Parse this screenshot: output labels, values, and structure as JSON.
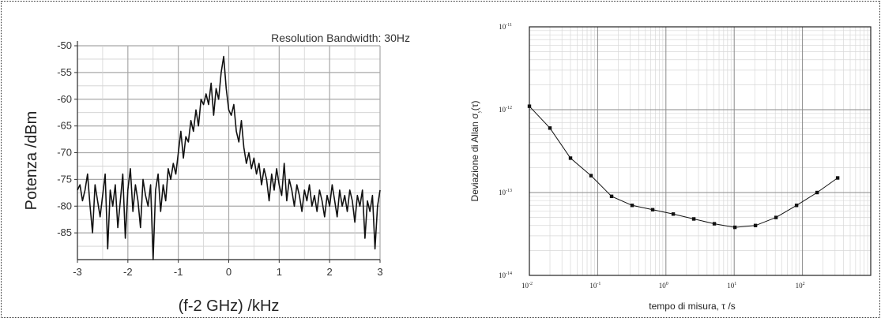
{
  "chart_data": [
    {
      "type": "line",
      "title": "",
      "annotation": "Resolution Bandwidth: 30Hz",
      "xlabel": "(f-2 GHz) /kHz",
      "ylabel": "Potenza /dBm",
      "xlim": [
        -3,
        3
      ],
      "ylim": [
        -90,
        -50
      ],
      "x_ticks": [
        -3,
        -2,
        -1,
        0,
        1,
        2,
        3
      ],
      "x_tick_labels": [
        "-3",
        "-2",
        "-1",
        "0",
        "1",
        "2",
        "3"
      ],
      "y_ticks": [
        -50,
        -55,
        -60,
        -65,
        -70,
        -75,
        -80,
        -85
      ],
      "y_tick_labels": [
        "-50",
        "-55",
        "-60",
        "-65",
        "-70",
        "-75",
        "-80",
        "-85"
      ],
      "grid": true,
      "line_color": "#111111",
      "series": [
        {
          "x": [
            -3.0,
            -2.95,
            -2.9,
            -2.85,
            -2.8,
            -2.75,
            -2.7,
            -2.65,
            -2.6,
            -2.55,
            -2.5,
            -2.45,
            -2.4,
            -2.35,
            -2.3,
            -2.25,
            -2.2,
            -2.15,
            -2.1,
            -2.05,
            -2.0,
            -1.95,
            -1.9,
            -1.85,
            -1.8,
            -1.75,
            -1.7,
            -1.65,
            -1.6,
            -1.55,
            -1.5,
            -1.45,
            -1.4,
            -1.35,
            -1.3,
            -1.25,
            -1.2,
            -1.15,
            -1.1,
            -1.05,
            -1.0,
            -0.95,
            -0.9,
            -0.85,
            -0.8,
            -0.75,
            -0.7,
            -0.65,
            -0.6,
            -0.55,
            -0.5,
            -0.45,
            -0.4,
            -0.35,
            -0.3,
            -0.25,
            -0.2,
            -0.15,
            -0.1,
            -0.05,
            0.0,
            0.05,
            0.1,
            0.15,
            0.2,
            0.25,
            0.3,
            0.35,
            0.4,
            0.45,
            0.5,
            0.55,
            0.6,
            0.65,
            0.7,
            0.75,
            0.8,
            0.85,
            0.9,
            0.95,
            1.0,
            1.05,
            1.1,
            1.15,
            1.2,
            1.25,
            1.3,
            1.35,
            1.4,
            1.45,
            1.5,
            1.55,
            1.6,
            1.65,
            1.7,
            1.75,
            1.8,
            1.85,
            1.9,
            1.95,
            2.0,
            2.05,
            2.1,
            2.15,
            2.2,
            2.25,
            2.3,
            2.35,
            2.4,
            2.45,
            2.5,
            2.55,
            2.6,
            2.65,
            2.7,
            2.75,
            2.8,
            2.85,
            2.9,
            2.95,
            3.0
          ],
          "values": [
            -77,
            -76,
            -79,
            -77,
            -74,
            -80,
            -85,
            -76,
            -79,
            -82,
            -78,
            -74,
            -88,
            -77,
            -80,
            -76,
            -84,
            -79,
            -74,
            -86,
            -77,
            -73,
            -81,
            -76,
            -79,
            -84,
            -75,
            -78,
            -80,
            -76,
            -90,
            -77,
            -74,
            -81,
            -76,
            -79,
            -73,
            -75,
            -72,
            -74,
            -70,
            -66,
            -71,
            -67,
            -68,
            -64,
            -66,
            -62,
            -65,
            -60,
            -61,
            -59,
            -61,
            -57,
            -63,
            -58,
            -60,
            -55,
            -52,
            -58,
            -62,
            -63,
            -61,
            -66,
            -68,
            -64,
            -69,
            -72,
            -70,
            -73,
            -71,
            -74,
            -72,
            -76,
            -73,
            -75,
            -79,
            -74,
            -77,
            -73,
            -76,
            -78,
            -72,
            -79,
            -75,
            -77,
            -80,
            -76,
            -78,
            -81,
            -77,
            -79,
            -76,
            -80,
            -78,
            -81,
            -77,
            -79,
            -82,
            -78,
            -80,
            -76,
            -79,
            -82,
            -77,
            -80,
            -78,
            -81,
            -77,
            -79,
            -83,
            -78,
            -80,
            -77,
            -86,
            -79,
            -81,
            -78,
            -88,
            -80,
            -77
          ]
        }
      ]
    },
    {
      "type": "line",
      "title": "",
      "xlabel": "tempo di misura, τ /s",
      "ylabel": "Deviazione di Allan  σ",
      "ylabel_subscript": "y",
      "ylabel_suffix": "(τ)",
      "x_scale": "log",
      "y_scale": "log",
      "xlim": [
        0.01,
        1000
      ],
      "ylim": [
        1e-14,
        1e-11
      ],
      "x_tick_exponents": [
        "-2",
        "-1",
        "0",
        "1",
        "2"
      ],
      "y_tick_exponents": [
        "-11",
        "-12",
        "-13",
        "-14"
      ],
      "tick_base": "10",
      "grid": true,
      "marker": "square",
      "series": [
        {
          "x": [
            0.01,
            0.02,
            0.04,
            0.08,
            0.16,
            0.32,
            0.64,
            1.28,
            2.56,
            5.12,
            10.24,
            20.48,
            40.96,
            81.92,
            163.84,
            327.68
          ],
          "values": [
            1.1e-12,
            6e-13,
            2.6e-13,
            1.6e-13,
            9e-14,
            7e-14,
            6.2e-14,
            5.5e-14,
            4.8e-14,
            4.2e-14,
            3.8e-14,
            4e-14,
            5e-14,
            7e-14,
            1e-13,
            1.5e-13
          ]
        }
      ]
    }
  ]
}
